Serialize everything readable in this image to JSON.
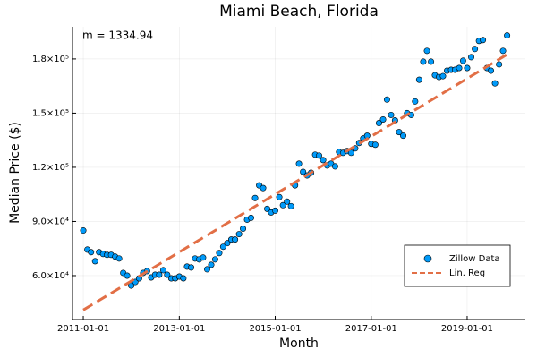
{
  "chart_data": {
    "type": "scatter",
    "title": "Miami Beach, Florida",
    "xlabel": "Month",
    "ylabel": "Median Price ($)",
    "annotation": "m = 1334.94",
    "xlim": [
      "2010-10-11",
      "2020-03-19"
    ],
    "xticks": [
      "2011-01-01",
      "2013-01-01",
      "2015-01-01",
      "2017-01-01",
      "2019-01-01"
    ],
    "ylim": [
      35700,
      197800
    ],
    "yticks": [
      {
        "value": 60000,
        "label": "6.0×10⁴"
      },
      {
        "value": 90000,
        "label": "9.0×10⁴"
      },
      {
        "value": 120000,
        "label": "1.2×10⁵"
      },
      {
        "value": 150000,
        "label": "1.5×10⁵"
      },
      {
        "value": 180000,
        "label": "1.8×10⁵"
      }
    ],
    "grid": true,
    "legend": "bottom-right",
    "series": [
      {
        "name": "Zillow Data",
        "type": "scatter",
        "color": "#009af9",
        "x": [
          "2011-01-01",
          "2011-02-01",
          "2011-03-01",
          "2011-04-01",
          "2011-05-01",
          "2011-06-01",
          "2011-07-01",
          "2011-08-01",
          "2011-09-01",
          "2011-10-01",
          "2011-11-01",
          "2011-12-01",
          "2012-01-01",
          "2012-02-01",
          "2012-03-01",
          "2012-04-01",
          "2012-05-01",
          "2012-06-01",
          "2012-07-01",
          "2012-08-01",
          "2012-09-01",
          "2012-10-01",
          "2012-11-01",
          "2012-12-01",
          "2013-01-01",
          "2013-02-01",
          "2013-03-01",
          "2013-04-01",
          "2013-05-01",
          "2013-06-01",
          "2013-07-01",
          "2013-08-01",
          "2013-09-01",
          "2013-10-01",
          "2013-11-01",
          "2013-12-01",
          "2014-01-01",
          "2014-02-01",
          "2014-03-01",
          "2014-04-01",
          "2014-05-01",
          "2014-06-01",
          "2014-07-01",
          "2014-08-01",
          "2014-09-01",
          "2014-10-01",
          "2014-11-01",
          "2014-12-01",
          "2015-01-01",
          "2015-02-01",
          "2015-03-01",
          "2015-04-01",
          "2015-05-01",
          "2015-06-01",
          "2015-07-01",
          "2015-08-01",
          "2015-09-01",
          "2015-10-01",
          "2015-11-01",
          "2015-12-01",
          "2016-01-01",
          "2016-02-01",
          "2016-03-01",
          "2016-04-01",
          "2016-05-01",
          "2016-06-01",
          "2016-07-01",
          "2016-08-01",
          "2016-09-01",
          "2016-10-01",
          "2016-11-01",
          "2016-12-01",
          "2017-01-01",
          "2017-02-01",
          "2017-03-01",
          "2017-04-01",
          "2017-05-01",
          "2017-06-01",
          "2017-07-01",
          "2017-08-01",
          "2017-09-01",
          "2017-10-01",
          "2017-11-01",
          "2017-12-01",
          "2018-01-01",
          "2018-02-01",
          "2018-03-01",
          "2018-04-01",
          "2018-05-01",
          "2018-06-01",
          "2018-07-01",
          "2018-08-01",
          "2018-09-01",
          "2018-10-01",
          "2018-11-01",
          "2018-12-01",
          "2019-01-01",
          "2019-02-01",
          "2019-03-01",
          "2019-04-01",
          "2019-05-01",
          "2019-06-01",
          "2019-07-01",
          "2019-08-01",
          "2019-09-01",
          "2019-10-01",
          "2019-11-01"
        ],
        "values": [
          85000,
          74400,
          73000,
          68000,
          73000,
          72000,
          71500,
          71500,
          70500,
          69500,
          61500,
          60000,
          54500,
          56500,
          58500,
          61500,
          62500,
          59000,
          60500,
          60500,
          63000,
          60500,
          58500,
          58500,
          59500,
          58500,
          65000,
          64500,
          69500,
          69000,
          70000,
          63500,
          66000,
          69000,
          72500,
          76000,
          78000,
          80000,
          80000,
          83000,
          86000,
          91000,
          92000,
          103000,
          110000,
          108500,
          97000,
          95000,
          96000,
          103500,
          99000,
          101000,
          98500,
          110000,
          122000,
          117500,
          115500,
          117000,
          127000,
          126500,
          124000,
          121000,
          122000,
          120500,
          128500,
          128000,
          129000,
          128000,
          130500,
          133500,
          136000,
          137500,
          133000,
          132500,
          144500,
          146500,
          157500,
          149000,
          146000,
          139500,
          137500,
          150000,
          149000,
          156500,
          168500,
          178500,
          184500,
          178500,
          171000,
          170000,
          170500,
          173500,
          174000,
          174000,
          175000,
          179000,
          175000,
          181000,
          185500,
          190000,
          190500,
          175000,
          173500,
          166500,
          177000,
          184500,
          193000
        ]
      },
      {
        "name": "Lin. Reg",
        "type": "line",
        "color": "#e26f46",
        "x": [
          "2011-01-01",
          "2019-11-01"
        ],
        "values": [
          41000,
          182500
        ]
      }
    ]
  }
}
